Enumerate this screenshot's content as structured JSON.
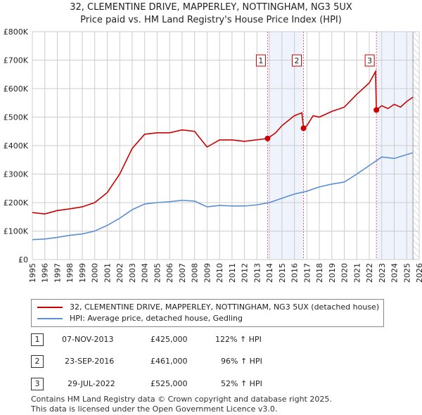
{
  "title": "32, CLEMENTINE DRIVE, MAPPERLEY, NOTTINGHAM, NG3 5UX",
  "subtitle": "Price paid vs. HM Land Registry's House Price Index (HPI)",
  "chart_data": {
    "type": "line",
    "title": "32, CLEMENTINE DRIVE, MAPPERLEY, NOTTINGHAM, NG3 5UX",
    "xlim": [
      1995,
      2026
    ],
    "ylim": [
      0,
      800000
    ],
    "x_ticks": [
      "1995",
      "1996",
      "1997",
      "1998",
      "1999",
      "2000",
      "2001",
      "2002",
      "2003",
      "2004",
      "2005",
      "2006",
      "2007",
      "2008",
      "2009",
      "2010",
      "2011",
      "2012",
      "2013",
      "2014",
      "2015",
      "2016",
      "2017",
      "2018",
      "2019",
      "2020",
      "2021",
      "2022",
      "2023",
      "2024",
      "2025",
      "2026"
    ],
    "y_ticks": [
      {
        "v": 0,
        "label": "£0"
      },
      {
        "v": 100000,
        "label": "£100K"
      },
      {
        "v": 200000,
        "label": "£200K"
      },
      {
        "v": 300000,
        "label": "£300K"
      },
      {
        "v": 400000,
        "label": "£400K"
      },
      {
        "v": 500000,
        "label": "£500K"
      },
      {
        "v": 600000,
        "label": "£600K"
      },
      {
        "v": 700000,
        "label": "£700K"
      },
      {
        "v": 800000,
        "label": "£800K"
      }
    ],
    "shaded_ranges": [
      [
        2013.85,
        2016.73
      ],
      [
        2022.57,
        2025.5
      ]
    ],
    "hatched_from": 2025.5,
    "series": [
      {
        "name": "32, CLEMENTINE DRIVE, MAPPERLEY, NOTTINGHAM, NG3 5UX (detached house)",
        "color": "#cc0000",
        "points": [
          [
            1995,
            165000
          ],
          [
            1996,
            160000
          ],
          [
            1997,
            172000
          ],
          [
            1998,
            178000
          ],
          [
            1999,
            185000
          ],
          [
            2000,
            200000
          ],
          [
            2001,
            235000
          ],
          [
            2002,
            300000
          ],
          [
            2003,
            390000
          ],
          [
            2004,
            440000
          ],
          [
            2005,
            445000
          ],
          [
            2006,
            445000
          ],
          [
            2007,
            455000
          ],
          [
            2008,
            450000
          ],
          [
            2009,
            395000
          ],
          [
            2010,
            420000
          ],
          [
            2011,
            420000
          ],
          [
            2012,
            415000
          ],
          [
            2013.85,
            425000
          ],
          [
            2014.5,
            445000
          ],
          [
            2015,
            470000
          ],
          [
            2016,
            505000
          ],
          [
            2016.6,
            515000
          ],
          [
            2016.73,
            461000
          ],
          [
            2017,
            470000
          ],
          [
            2017.5,
            505000
          ],
          [
            2018,
            500000
          ],
          [
            2019,
            520000
          ],
          [
            2020,
            535000
          ],
          [
            2021,
            580000
          ],
          [
            2022,
            620000
          ],
          [
            2022.5,
            660000
          ],
          [
            2022.57,
            525000
          ],
          [
            2023,
            540000
          ],
          [
            2023.5,
            530000
          ],
          [
            2024,
            545000
          ],
          [
            2024.5,
            535000
          ],
          [
            2025,
            555000
          ],
          [
            2025.5,
            570000
          ]
        ]
      },
      {
        "name": "HPI: Average price, detached house, Gedling",
        "color": "#5b8fd4",
        "points": [
          [
            1995,
            70000
          ],
          [
            1996,
            72000
          ],
          [
            1997,
            78000
          ],
          [
            1998,
            85000
          ],
          [
            1999,
            90000
          ],
          [
            2000,
            100000
          ],
          [
            2001,
            120000
          ],
          [
            2002,
            145000
          ],
          [
            2003,
            175000
          ],
          [
            2004,
            195000
          ],
          [
            2005,
            200000
          ],
          [
            2006,
            203000
          ],
          [
            2007,
            208000
          ],
          [
            2008,
            205000
          ],
          [
            2009,
            185000
          ],
          [
            2010,
            190000
          ],
          [
            2011,
            188000
          ],
          [
            2012,
            188000
          ],
          [
            2013,
            192000
          ],
          [
            2014,
            200000
          ],
          [
            2015,
            215000
          ],
          [
            2016,
            230000
          ],
          [
            2017,
            240000
          ],
          [
            2018,
            255000
          ],
          [
            2019,
            265000
          ],
          [
            2020,
            272000
          ],
          [
            2021,
            300000
          ],
          [
            2022,
            330000
          ],
          [
            2023,
            360000
          ],
          [
            2024,
            355000
          ],
          [
            2025.5,
            375000
          ]
        ]
      }
    ],
    "sales": [
      {
        "label": "1",
        "x": 2013.85,
        "y": 425000
      },
      {
        "label": "2",
        "x": 2016.73,
        "y": 461000
      },
      {
        "label": "3",
        "x": 2022.57,
        "y": 525000
      }
    ]
  },
  "legend": {
    "red": "32, CLEMENTINE DRIVE, MAPPERLEY, NOTTINGHAM, NG3 5UX (detached house)",
    "blue": "HPI: Average price, detached house, Gedling"
  },
  "transactions": [
    {
      "num": "1",
      "date": "07-NOV-2013",
      "price": "£425,000",
      "hpi": "122% ↑ HPI"
    },
    {
      "num": "2",
      "date": "23-SEP-2016",
      "price": "£461,000",
      "hpi": "96% ↑ HPI"
    },
    {
      "num": "3",
      "date": "29-JUL-2022",
      "price": "£525,000",
      "hpi": "52% ↑ HPI"
    }
  ],
  "footer": [
    "Contains HM Land Registry data © Crown copyright and database right 2025.",
    "This data is licensed under the Open Government Licence v3.0."
  ]
}
